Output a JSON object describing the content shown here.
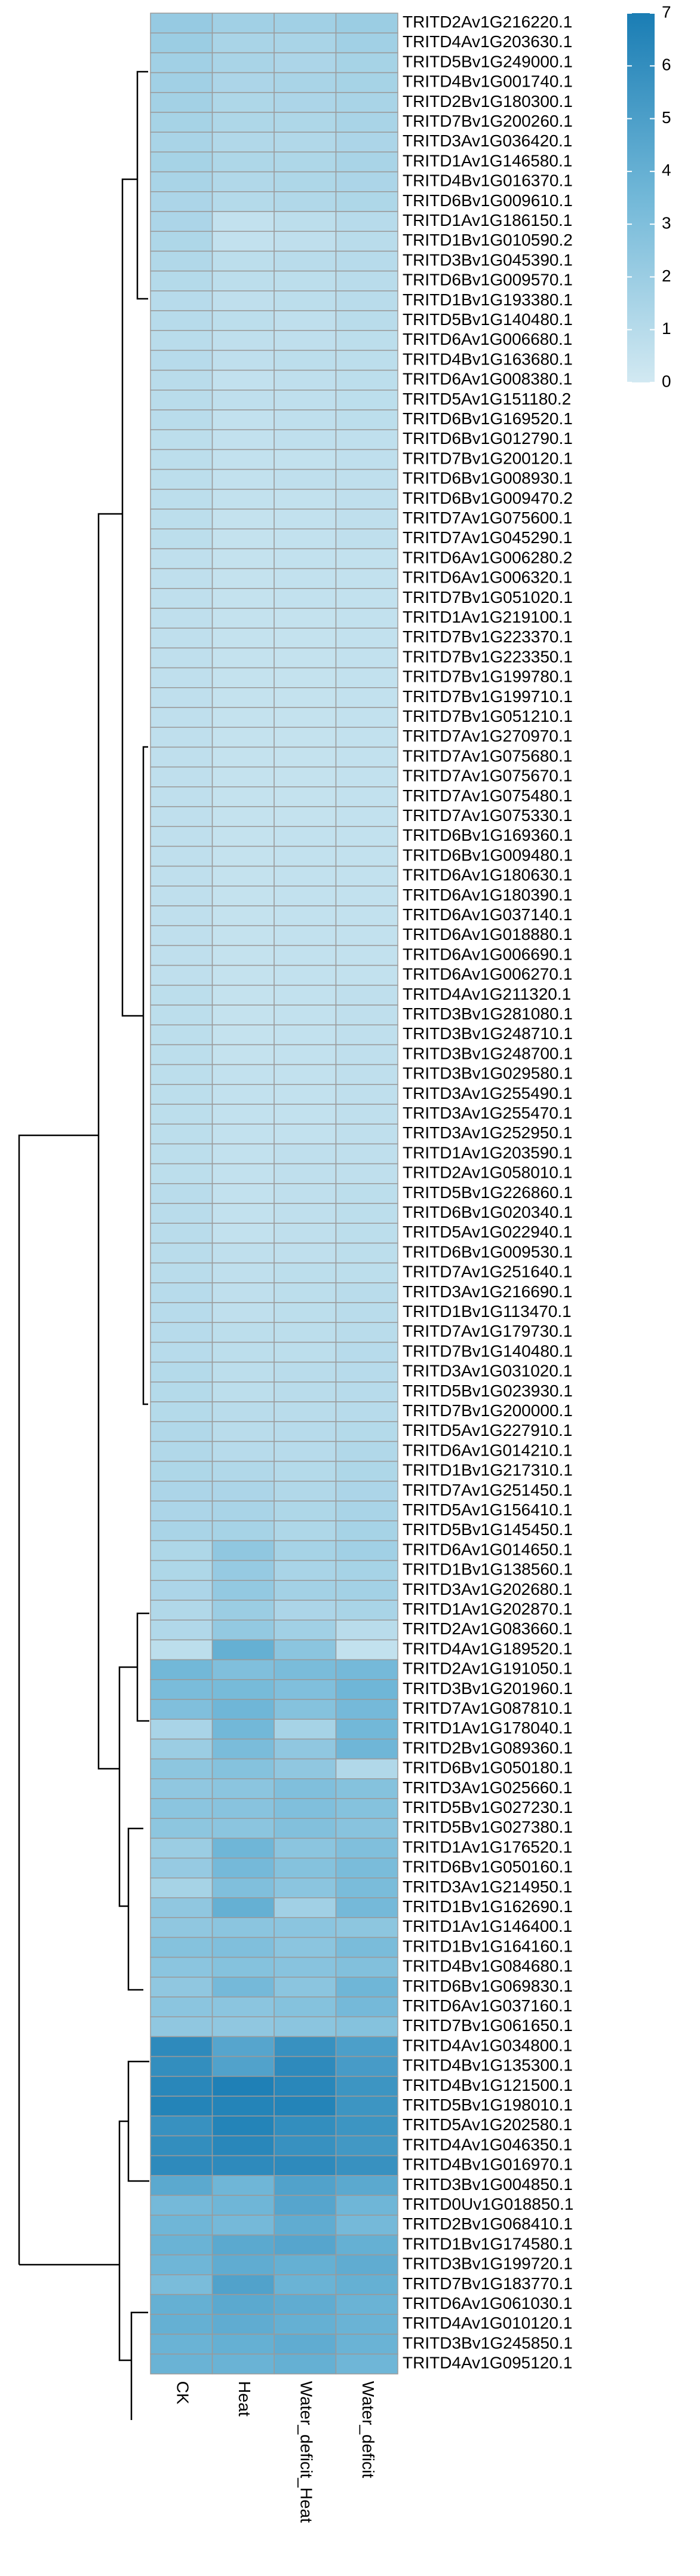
{
  "chart_data": {
    "type": "heatmap",
    "x": [
      "CK",
      "Heat",
      "Water_deficit_Heat",
      "Water_deficit"
    ],
    "y": [
      "TRITD2Av1G216220.1",
      "TRITD4Av1G203630.1",
      "TRITD5Bv1G249000.1",
      "TRITD4Bv1G001740.1",
      "TRITD2Bv1G180300.1",
      "TRITD7Bv1G200260.1",
      "TRITD3Av1G036420.1",
      "TRITD1Av1G146580.1",
      "TRITD4Bv1G016370.1",
      "TRITD6Bv1G009610.1",
      "TRITD1Av1G186150.1",
      "TRITD1Bv1G010590.2",
      "TRITD3Bv1G045390.1",
      "TRITD6Bv1G009570.1",
      "TRITD1Bv1G193380.1",
      "TRITD5Bv1G140480.1",
      "TRITD6Av1G006680.1",
      "TRITD4Bv1G163680.1",
      "TRITD6Av1G008380.1",
      "TRITD5Av1G151180.2",
      "TRITD6Bv1G169520.1",
      "TRITD6Bv1G012790.1",
      "TRITD7Bv1G200120.1",
      "TRITD6Bv1G008930.1",
      "TRITD6Bv1G009470.2",
      "TRITD7Av1G075600.1",
      "TRITD7Av1G045290.1",
      "TRITD6Av1G006280.2",
      "TRITD6Av1G006320.1",
      "TRITD7Bv1G051020.1",
      "TRITD1Av1G219100.1",
      "TRITD7Bv1G223370.1",
      "TRITD7Bv1G223350.1",
      "TRITD7Bv1G199780.1",
      "TRITD7Bv1G199710.1",
      "TRITD7Bv1G051210.1",
      "TRITD7Av1G270970.1",
      "TRITD7Av1G075680.1",
      "TRITD7Av1G075670.1",
      "TRITD7Av1G075480.1",
      "TRITD7Av1G075330.1",
      "TRITD6Bv1G169360.1",
      "TRITD6Bv1G009480.1",
      "TRITD6Av1G180630.1",
      "TRITD6Av1G180390.1",
      "TRITD6Av1G037140.1",
      "TRITD6Av1G018880.1",
      "TRITD6Av1G006690.1",
      "TRITD6Av1G006270.1",
      "TRITD4Av1G211320.1",
      "TRITD3Bv1G281080.1",
      "TRITD3Bv1G248710.1",
      "TRITD3Bv1G248700.1",
      "TRITD3Bv1G029580.1",
      "TRITD3Av1G255490.1",
      "TRITD3Av1G255470.1",
      "TRITD3Av1G252950.1",
      "TRITD1Av1G203590.1",
      "TRITD2Av1G058010.1",
      "TRITD5Bv1G226860.1",
      "TRITD6Bv1G020340.1",
      "TRITD5Av1G022940.1",
      "TRITD6Bv1G009530.1",
      "TRITD7Av1G251640.1",
      "TRITD3Av1G216690.1",
      "TRITD1Bv1G113470.1",
      "TRITD7Av1G179730.1",
      "TRITD7Bv1G140480.1",
      "TRITD3Av1G031020.1",
      "TRITD5Bv1G023930.1",
      "TRITD7Bv1G200000.1",
      "TRITD5Av1G227910.1",
      "TRITD6Av1G014210.1",
      "TRITD1Bv1G217310.1",
      "TRITD7Av1G251450.1",
      "TRITD5Av1G156410.1",
      "TRITD5Bv1G145450.1",
      "TRITD6Av1G014650.1",
      "TRITD1Bv1G138560.1",
      "TRITD3Av1G202680.1",
      "TRITD1Av1G202870.1",
      "TRITD2Av1G083660.1",
      "TRITD4Av1G189520.1",
      "TRITD2Av1G191050.1",
      "TRITD3Bv1G201960.1",
      "TRITD7Av1G087810.1",
      "TRITD1Av1G178040.1",
      "TRITD2Bv1G089360.1",
      "TRITD6Bv1G050180.1",
      "TRITD3Av1G025660.1",
      "TRITD5Bv1G027230.1",
      "TRITD5Bv1G027380.1",
      "TRITD1Av1G176520.1",
      "TRITD6Bv1G050160.1",
      "TRITD3Av1G214950.1",
      "TRITD1Bv1G162690.1",
      "TRITD1Av1G146400.1",
      "TRITD1Bv1G164160.1",
      "TRITD4Bv1G084680.1",
      "TRITD6Bv1G069830.1",
      "TRITD6Av1G037160.1",
      "TRITD7Bv1G061650.1",
      "TRITD4Av1G034800.1",
      "TRITD4Bv1G135300.1",
      "TRITD4Bv1G121500.1",
      "TRITD5Bv1G198010.1",
      "TRITD5Av1G202580.1",
      "TRITD4Av1G046350.1",
      "TRITD4Bv1G016970.1",
      "TRITD3Bv1G004850.1",
      "TRITD0Uv1G018850.1",
      "TRITD2Bv1G068410.1",
      "TRITD1Bv1G174580.1",
      "TRITD3Bv1G199720.1",
      "TRITD7Bv1G183770.1",
      "TRITD6Av1G061030.1",
      "TRITD4Av1G010120.1",
      "TRITD3Bv1G245850.1",
      "TRITD4Av1G095120.1"
    ],
    "values": [
      [
        2.2,
        1.8,
        1.8,
        2.0
      ],
      [
        2.0,
        1.5,
        1.5,
        1.8
      ],
      [
        1.8,
        1.5,
        1.4,
        1.6
      ],
      [
        1.8,
        1.4,
        1.5,
        1.6
      ],
      [
        1.7,
        1.3,
        1.4,
        1.5
      ],
      [
        1.6,
        1.3,
        1.3,
        1.5
      ],
      [
        1.5,
        1.2,
        1.2,
        1.4
      ],
      [
        1.6,
        1.3,
        1.3,
        1.5
      ],
      [
        1.5,
        1.2,
        1.3,
        1.4
      ],
      [
        1.4,
        1.1,
        1.2,
        1.3
      ],
      [
        1.4,
        0.6,
        0.8,
        1.0
      ],
      [
        1.3,
        0.6,
        0.7,
        0.9
      ],
      [
        1.2,
        0.8,
        0.9,
        1.0
      ],
      [
        1.1,
        0.8,
        0.8,
        0.9
      ],
      [
        1.0,
        0.7,
        0.8,
        0.9
      ],
      [
        1.0,
        0.8,
        0.7,
        0.9
      ],
      [
        0.9,
        0.7,
        0.7,
        0.8
      ],
      [
        1.0,
        0.7,
        0.8,
        0.8
      ],
      [
        0.9,
        0.6,
        0.7,
        0.8
      ],
      [
        0.9,
        0.7,
        0.7,
        0.8
      ],
      [
        0.9,
        0.6,
        0.7,
        0.8
      ],
      [
        0.8,
        0.6,
        0.7,
        0.7
      ],
      [
        0.8,
        0.6,
        0.6,
        0.7
      ],
      [
        0.8,
        0.6,
        0.7,
        0.7
      ],
      [
        0.8,
        0.6,
        0.6,
        0.7
      ],
      [
        0.8,
        0.5,
        0.6,
        0.7
      ],
      [
        0.8,
        0.5,
        0.6,
        0.7
      ],
      [
        0.7,
        0.5,
        0.6,
        0.6
      ],
      [
        0.7,
        0.5,
        0.6,
        0.6
      ],
      [
        0.7,
        0.5,
        0.6,
        0.6
      ],
      [
        0.7,
        0.5,
        0.5,
        0.6
      ],
      [
        0.7,
        0.5,
        0.5,
        0.6
      ],
      [
        0.7,
        0.5,
        0.5,
        0.6
      ],
      [
        0.7,
        0.5,
        0.5,
        0.6
      ],
      [
        0.7,
        0.5,
        0.5,
        0.6
      ],
      [
        0.7,
        0.5,
        0.5,
        0.6
      ],
      [
        0.7,
        0.5,
        0.5,
        0.6
      ],
      [
        0.7,
        0.5,
        0.5,
        0.6
      ],
      [
        0.7,
        0.5,
        0.5,
        0.6
      ],
      [
        0.7,
        0.5,
        0.5,
        0.6
      ],
      [
        0.7,
        0.5,
        0.5,
        0.6
      ],
      [
        0.7,
        0.5,
        0.6,
        0.6
      ],
      [
        0.7,
        0.5,
        0.6,
        0.6
      ],
      [
        0.7,
        0.5,
        0.6,
        0.6
      ],
      [
        0.7,
        0.5,
        0.6,
        0.6
      ],
      [
        0.7,
        0.5,
        0.6,
        0.6
      ],
      [
        0.7,
        0.5,
        0.6,
        0.6
      ],
      [
        0.7,
        0.5,
        0.6,
        0.6
      ],
      [
        0.7,
        0.5,
        0.6,
        0.6
      ],
      [
        0.8,
        0.5,
        0.6,
        0.7
      ],
      [
        0.8,
        0.5,
        0.6,
        0.7
      ],
      [
        0.8,
        0.5,
        0.6,
        0.7
      ],
      [
        0.8,
        0.5,
        0.6,
        0.7
      ],
      [
        0.8,
        0.6,
        0.6,
        0.7
      ],
      [
        0.8,
        0.6,
        0.6,
        0.7
      ],
      [
        0.8,
        0.6,
        0.6,
        0.7
      ],
      [
        0.8,
        0.6,
        0.6,
        0.7
      ],
      [
        0.8,
        0.6,
        0.7,
        0.7
      ],
      [
        0.8,
        0.6,
        0.7,
        0.7
      ],
      [
        0.9,
        0.6,
        0.7,
        0.8
      ],
      [
        0.9,
        0.6,
        0.7,
        0.8
      ],
      [
        0.9,
        0.6,
        0.7,
        0.8
      ],
      [
        0.9,
        0.7,
        0.7,
        0.8
      ],
      [
        0.9,
        0.7,
        0.8,
        0.8
      ],
      [
        1.0,
        0.7,
        0.8,
        0.9
      ],
      [
        1.0,
        0.7,
        0.8,
        0.9
      ],
      [
        1.0,
        0.8,
        0.8,
        0.9
      ],
      [
        1.0,
        0.8,
        0.8,
        1.0
      ],
      [
        1.1,
        0.8,
        0.9,
        1.0
      ],
      [
        1.1,
        0.8,
        0.9,
        1.0
      ],
      [
        1.1,
        0.9,
        0.9,
        1.0
      ],
      [
        1.2,
        0.9,
        1.0,
        1.1
      ],
      [
        1.2,
        1.0,
        1.0,
        1.2
      ],
      [
        1.3,
        1.2,
        1.1,
        1.3
      ],
      [
        1.4,
        1.4,
        1.2,
        1.4
      ],
      [
        1.4,
        1.5,
        1.3,
        1.5
      ],
      [
        1.5,
        1.6,
        1.3,
        1.6
      ],
      [
        1.3,
        2.4,
        1.6,
        1.8
      ],
      [
        1.3,
        2.2,
        1.5,
        1.6
      ],
      [
        1.4,
        2.3,
        1.7,
        1.7
      ],
      [
        1.2,
        2.0,
        1.4,
        1.5
      ],
      [
        1.2,
        2.3,
        1.8,
        0.9
      ],
      [
        0.8,
        4.0,
        2.6,
        0.6
      ],
      [
        3.5,
        3.0,
        3.2,
        3.4
      ],
      [
        3.2,
        3.3,
        3.0,
        3.6
      ],
      [
        3.0,
        3.6,
        2.8,
        3.4
      ],
      [
        1.5,
        3.5,
        1.6,
        3.5
      ],
      [
        2.0,
        3.2,
        2.4,
        3.6
      ],
      [
        2.5,
        2.8,
        2.4,
        1.2
      ],
      [
        2.4,
        2.6,
        3.0,
        2.8
      ],
      [
        2.6,
        2.7,
        3.0,
        2.8
      ],
      [
        2.5,
        2.6,
        2.9,
        2.7
      ],
      [
        2.0,
        3.6,
        2.6,
        3.0
      ],
      [
        2.2,
        3.4,
        2.8,
        3.2
      ],
      [
        1.6,
        3.0,
        2.6,
        3.2
      ],
      [
        2.4,
        4.0,
        1.8,
        3.4
      ],
      [
        2.4,
        2.6,
        2.6,
        2.5
      ],
      [
        2.8,
        3.0,
        2.6,
        3.2
      ],
      [
        2.6,
        2.8,
        2.7,
        2.9
      ],
      [
        2.4,
        3.4,
        2.6,
        3.6
      ],
      [
        2.6,
        2.6,
        2.8,
        3.4
      ],
      [
        2.4,
        2.4,
        2.6,
        2.8
      ],
      [
        6.2,
        4.6,
        5.8,
        5.0
      ],
      [
        6.0,
        4.8,
        6.2,
        5.2
      ],
      [
        6.4,
        6.8,
        6.4,
        5.6
      ],
      [
        6.6,
        6.6,
        6.6,
        5.6
      ],
      [
        5.8,
        6.6,
        6.0,
        5.6
      ],
      [
        6.0,
        6.4,
        5.8,
        5.4
      ],
      [
        6.2,
        6.2,
        6.2,
        5.8
      ],
      [
        4.4,
        3.6,
        4.8,
        4.4
      ],
      [
        3.4,
        3.6,
        4.6,
        3.6
      ],
      [
        3.6,
        3.4,
        4.2,
        3.4
      ],
      [
        3.8,
        4.4,
        4.6,
        4.0
      ],
      [
        3.6,
        4.2,
        4.0,
        4.2
      ],
      [
        3.2,
        4.8,
        3.8,
        4.0
      ],
      [
        4.0,
        4.4,
        4.2,
        3.8
      ],
      [
        4.0,
        4.2,
        4.0,
        3.8
      ],
      [
        3.8,
        4.0,
        4.2,
        3.8
      ],
      [
        3.8,
        3.8,
        4.0,
        3.6
      ]
    ],
    "colors": [
      "#d2e9f2",
      "#72b8d8",
      "#1a7db4"
    ],
    "clim": [
      0,
      7
    ],
    "cticks": [
      0,
      1,
      2,
      3,
      4,
      5,
      6,
      7
    ]
  }
}
